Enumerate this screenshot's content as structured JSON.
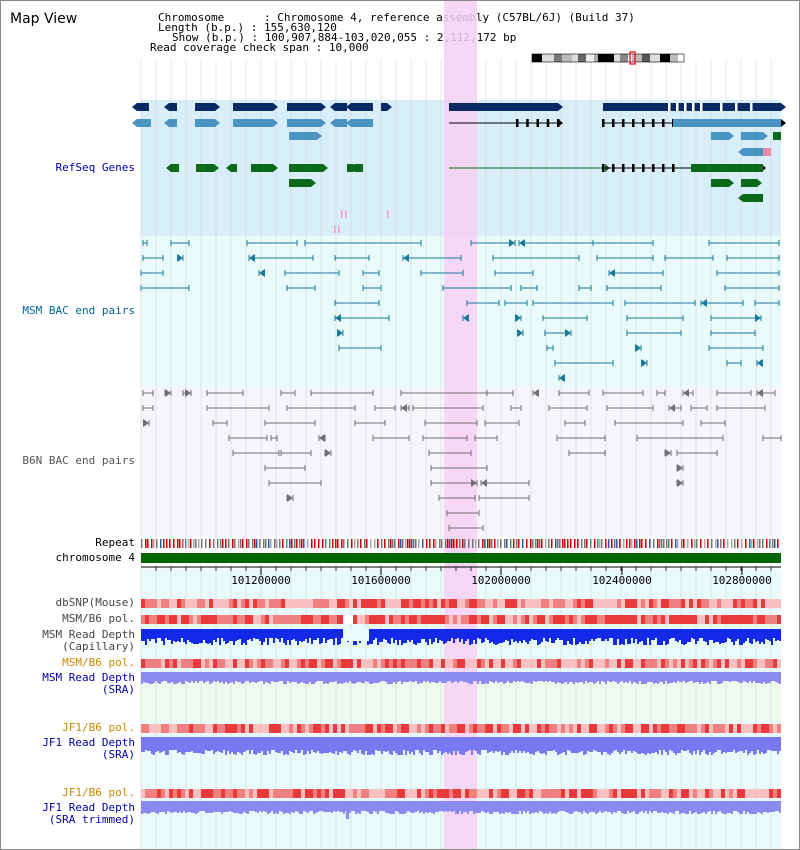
{
  "header": {
    "title": "Map View",
    "lines": [
      {
        "key": "Chromosome",
        "sep": " : ",
        "value": "Chromosome 4, reference assembly (C57BL/6J) (Build 37)"
      },
      {
        "key": "Length (b.p.)",
        "sep": " : ",
        "value": "155,630,120"
      },
      {
        "key": "Show (b.p.)",
        "sep": " : ",
        "value": "100,907,884-103,020,055 : 2,112,172 bp"
      },
      {
        "key": "Read coverage check span",
        "sep": " : ",
        "value": "10,000"
      }
    ]
  },
  "tracks": {
    "refseq": {
      "label": "RefSeq Genes",
      "color": "#0000aa"
    },
    "msm_bac": {
      "label": "MSM BAC end pairs",
      "color": "#006699"
    },
    "b6n_bac": {
      "label": "B6N BAC end pairs",
      "color": "#555555"
    },
    "repeat": {
      "label": "Repeat"
    },
    "chromosome": {
      "label": "chromosome 4",
      "color": "#006600"
    },
    "dbsnp": {
      "label": "dbSNP(Mouse)"
    },
    "msm_b6_pol": {
      "label": "MSM/B6 pol."
    },
    "msm_read_depth_cap": {
      "label1": "MSM Read Depth",
      "label2": "(Capillary)"
    },
    "msm_b6_pol_sra": {
      "label": "MSM/B6 pol.",
      "color": "#cc8800"
    },
    "msm_read_depth_sra": {
      "label1": "MSM Read Depth",
      "label2": "(SRA)",
      "color": "#0000aa"
    },
    "jf1_b6_pol": {
      "label": "JF1/B6 pol.",
      "color": "#cc8800"
    },
    "jf1_read_depth": {
      "label1": "JF1 Read Depth",
      "label2": "(SRA)",
      "color": "#0000aa"
    },
    "jf1_b6_pol_trim": {
      "label": "JF1/B6 pol.",
      "color": "#cc8800"
    },
    "jf1_read_depth_trim": {
      "label1": "JF1 Read Depth",
      "label2": "(SRA trimmed)",
      "color": "#0000aa"
    }
  },
  "axis": {
    "ticks": [
      "101200000",
      "101600000",
      "102000000",
      "102400000",
      "102800000"
    ]
  },
  "colors": {
    "highlight": "#f7d0f4",
    "refseq_bg": "#d8eef8",
    "msm_bg": "#e8fafa",
    "b6n_bg": "#f5f6fb",
    "gene_dark": "#0a2a66",
    "gene_mid": "#4a94c4",
    "gene_green": "#0a6a1a"
  }
}
